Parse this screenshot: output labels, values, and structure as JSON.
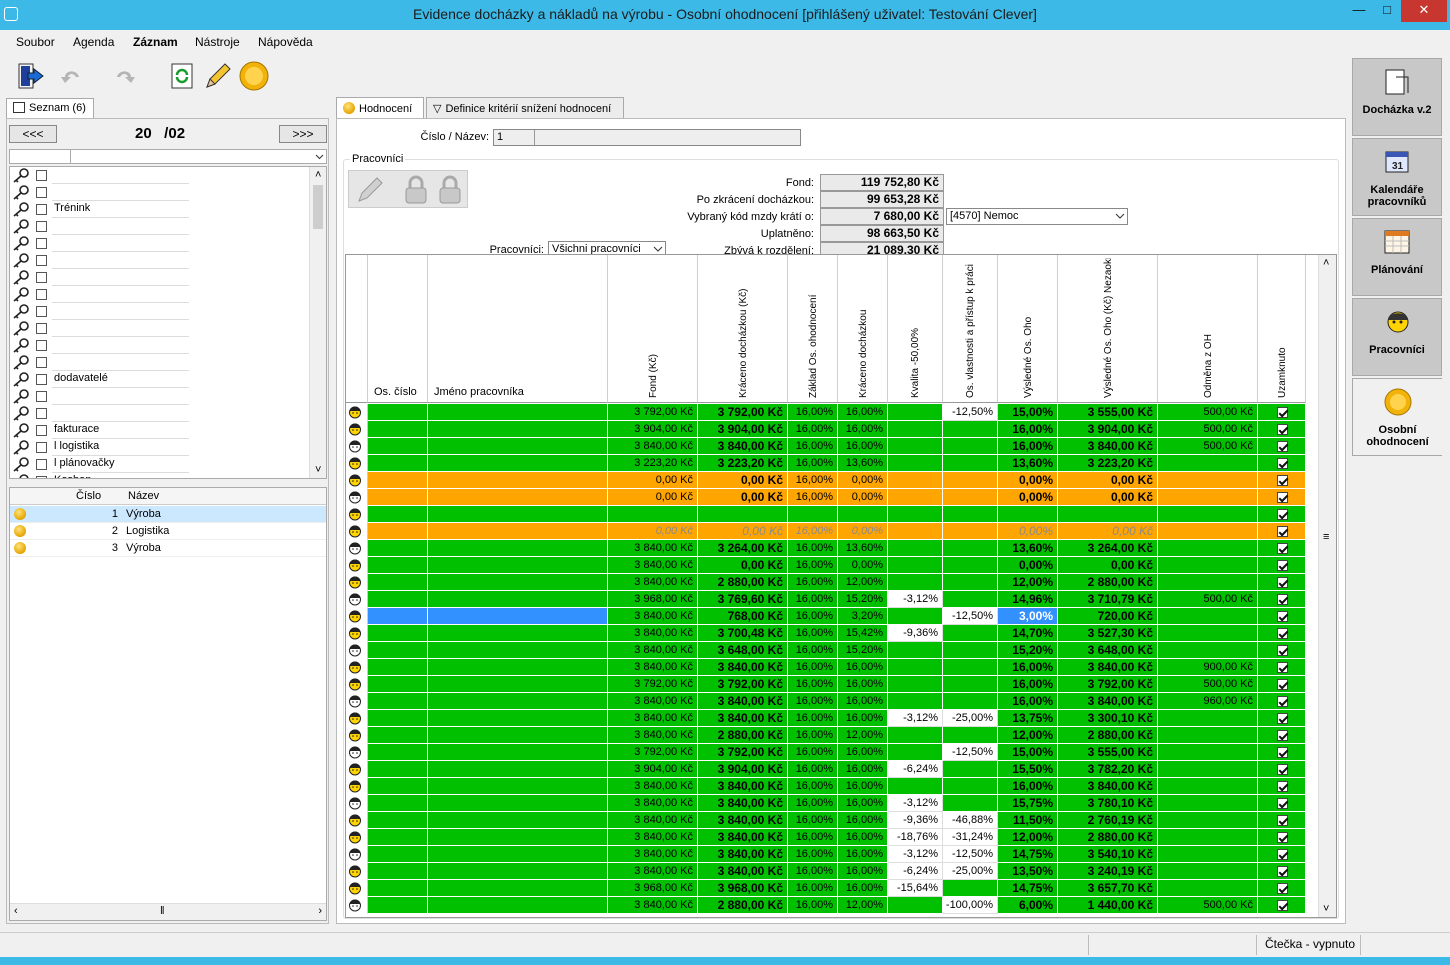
{
  "window": {
    "title": "Evidence docházky a nákladů na výrobu - Osobní ohodnocení [přihlášený uživatel: Testování Clever]"
  },
  "menu": [
    "Soubor",
    "Agenda",
    "Záznam",
    "Nástroje",
    "Nápověda"
  ],
  "toolbar": {
    "icons": [
      "exit-icon",
      "undo-icon",
      "redo-icon",
      "refresh-icon",
      "pencil-icon",
      "coin-icon"
    ]
  },
  "left": {
    "tab_label": "Seznam (6)",
    "prev_label": "<<<",
    "next_label": ">>>",
    "period": "20   /02",
    "list_items": [
      "",
      "",
      "Trénink",
      "",
      "",
      "",
      "",
      "",
      "",
      "",
      "",
      "",
      "dodavatelé",
      "",
      "",
      "fakturace",
      "l logistika",
      "l plánovačky",
      "Koshon"
    ],
    "table_headers": {
      "num": "Číslo",
      "name": "Název"
    },
    "table_rows": [
      {
        "num": "1",
        "name": "Výroba"
      },
      {
        "num": "2",
        "name": "Logistika"
      },
      {
        "num": "3",
        "name": "Výroba"
      }
    ]
  },
  "tabs": [
    "Hodnocení",
    "Definice kritérií snížení hodnocení"
  ],
  "form": {
    "id_label": "Číslo / Název:",
    "id_value": "1",
    "group_label": "Pracovníci",
    "workers_label": "Pracovníci:",
    "workers_value": "Všichni pracovníci",
    "fond_label": "Fond:",
    "fond_value": "119 752,80 Kč",
    "po_label": "Po zkrácení docházkou:",
    "po_value": "99 653,28 Kč",
    "kod_label": "Vybraný kód mzdy krátí o:",
    "kod_value": "7 680,00 Kč",
    "kod_select": "[4570] Nemoc",
    "upl_label": "Uplatněno:",
    "upl_value": "98 663,50 Kč",
    "zbyva_label": "Zbývá k rozdělení:",
    "zbyva_value": "21 089,30 Kč"
  },
  "grid": {
    "headers": [
      "Os. číslo",
      "Jméno pracovníka",
      "Fond (Kč)",
      "Kráceno docházkou (Kč)",
      "Základ Os. ohodnocení",
      "Kráceno docházkou",
      "Kvalita -50,00%",
      "Os. vlastnosti a přístup k práci",
      "Výsledné Os. Oho",
      "Výsledné Os. Oho (Kč) Nezaokrouhleno na koruny",
      "Odměna z OH",
      "Uzamknuto"
    ],
    "rows": [
      {
        "c": "g",
        "f": "3 792,00 Kč",
        "k": "3 792,00 Kč",
        "z": "16,00%",
        "kd": "16,00%",
        "q": "",
        "v": "-12,50%",
        "r": "15,00%",
        "rk": "3 555,00 Kč",
        "o": "500,00 Kč"
      },
      {
        "c": "g",
        "f": "3 904,00 Kč",
        "k": "3 904,00 Kč",
        "z": "16,00%",
        "kd": "16,00%",
        "q": "",
        "v": "",
        "r": "16,00%",
        "rk": "3 904,00 Kč",
        "o": "500,00 Kč"
      },
      {
        "c": "g",
        "f": "3 840,00 Kč",
        "k": "3 840,00 Kč",
        "z": "16,00%",
        "kd": "16,00%",
        "q": "",
        "v": "",
        "r": "16,00%",
        "rk": "3 840,00 Kč",
        "o": "500,00 Kč"
      },
      {
        "c": "g",
        "f": "3 223,20 Kč",
        "k": "3 223,20 Kč",
        "z": "16,00%",
        "kd": "13,60%",
        "q": "",
        "v": "",
        "r": "13,60%",
        "rk": "3 223,20 Kč",
        "o": ""
      },
      {
        "c": "o",
        "f": "0,00 Kč",
        "k": "0,00 Kč",
        "z": "16,00%",
        "kd": "0,00%",
        "q": "",
        "v": "",
        "r": "0,00%",
        "rk": "0,00 Kč",
        "o": ""
      },
      {
        "c": "o",
        "f": "0,00 Kč",
        "k": "0,00 Kč",
        "z": "16,00%",
        "kd": "0,00%",
        "q": "",
        "v": "",
        "r": "0,00%",
        "rk": "0,00 Kč",
        "o": ""
      },
      {
        "c": "gi",
        "f": "",
        "k": "",
        "z": "",
        "kd": "",
        "q": "",
        "v": "",
        "r": "",
        "rk": "",
        "o": ""
      },
      {
        "c": "oi",
        "f": "0,00 Kč",
        "k": "0,00 Kč",
        "z": "16,00%",
        "kd": "0,00%",
        "q": "",
        "v": "",
        "r": "0,00%",
        "rk": "0,00 Kč",
        "o": ""
      },
      {
        "c": "g",
        "f": "3 840,00 Kč",
        "k": "3 264,00 Kč",
        "z": "16,00%",
        "kd": "13,60%",
        "q": "",
        "v": "",
        "r": "13,60%",
        "rk": "3 264,00 Kč",
        "o": ""
      },
      {
        "c": "g",
        "f": "3 840,00 Kč",
        "k": "0,00 Kč",
        "z": "16,00%",
        "kd": "0,00%",
        "q": "",
        "v": "",
        "r": "0,00%",
        "rk": "0,00 Kč",
        "o": ""
      },
      {
        "c": "g",
        "f": "3 840,00 Kč",
        "k": "2 880,00 Kč",
        "z": "16,00%",
        "kd": "12,00%",
        "q": "",
        "v": "",
        "r": "12,00%",
        "rk": "2 880,00 Kč",
        "o": ""
      },
      {
        "c": "g",
        "f": "3 968,00 Kč",
        "k": "3 769,60 Kč",
        "z": "16,00%",
        "kd": "15,20%",
        "q": "-3,12%",
        "v": "",
        "r": "14,96%",
        "rk": "3 710,79 Kč",
        "o": "500,00 Kč"
      },
      {
        "c": "s",
        "f": "3 840,00 Kč",
        "k": "768,00 Kč",
        "z": "16,00%",
        "kd": "3,20%",
        "q": "",
        "v": "-12,50%",
        "r": "3,00%",
        "rk": "720,00 Kč",
        "o": ""
      },
      {
        "c": "g",
        "f": "3 840,00 Kč",
        "k": "3 700,48 Kč",
        "z": "16,00%",
        "kd": "15,42%",
        "q": "-9,36%",
        "v": "",
        "r": "14,70%",
        "rk": "3 527,30 Kč",
        "o": ""
      },
      {
        "c": "g",
        "f": "3 840,00 Kč",
        "k": "3 648,00 Kč",
        "z": "16,00%",
        "kd": "15,20%",
        "q": "",
        "v": "",
        "r": "15,20%",
        "rk": "3 648,00 Kč",
        "o": ""
      },
      {
        "c": "g",
        "f": "3 840,00 Kč",
        "k": "3 840,00 Kč",
        "z": "16,00%",
        "kd": "16,00%",
        "q": "",
        "v": "",
        "r": "16,00%",
        "rk": "3 840,00 Kč",
        "o": "900,00 Kč"
      },
      {
        "c": "g",
        "f": "3 792,00 Kč",
        "k": "3 792,00 Kč",
        "z": "16,00%",
        "kd": "16,00%",
        "q": "",
        "v": "",
        "r": "16,00%",
        "rk": "3 792,00 Kč",
        "o": "500,00 Kč"
      },
      {
        "c": "g",
        "f": "3 840,00 Kč",
        "k": "3 840,00 Kč",
        "z": "16,00%",
        "kd": "16,00%",
        "q": "",
        "v": "",
        "r": "16,00%",
        "rk": "3 840,00 Kč",
        "o": "960,00 Kč"
      },
      {
        "c": "g",
        "f": "3 840,00 Kč",
        "k": "3 840,00 Kč",
        "z": "16,00%",
        "kd": "16,00%",
        "q": "-3,12%",
        "v": "-25,00%",
        "r": "13,75%",
        "rk": "3 300,10 Kč",
        "o": ""
      },
      {
        "c": "g",
        "f": "3 840,00 Kč",
        "k": "2 880,00 Kč",
        "z": "16,00%",
        "kd": "12,00%",
        "q": "",
        "v": "",
        "r": "12,00%",
        "rk": "2 880,00 Kč",
        "o": ""
      },
      {
        "c": "g",
        "f": "3 792,00 Kč",
        "k": "3 792,00 Kč",
        "z": "16,00%",
        "kd": "16,00%",
        "q": "",
        "v": "-12,50%",
        "r": "15,00%",
        "rk": "3 555,00 Kč",
        "o": ""
      },
      {
        "c": "g",
        "f": "3 904,00 Kč",
        "k": "3 904,00 Kč",
        "z": "16,00%",
        "kd": "16,00%",
        "q": "-6,24%",
        "v": "",
        "r": "15,50%",
        "rk": "3 782,20 Kč",
        "o": ""
      },
      {
        "c": "g",
        "f": "3 840,00 Kč",
        "k": "3 840,00 Kč",
        "z": "16,00%",
        "kd": "16,00%",
        "q": "",
        "v": "",
        "r": "16,00%",
        "rk": "3 840,00 Kč",
        "o": ""
      },
      {
        "c": "g",
        "f": "3 840,00 Kč",
        "k": "3 840,00 Kč",
        "z": "16,00%",
        "kd": "16,00%",
        "q": "-3,12%",
        "v": "",
        "r": "15,75%",
        "rk": "3 780,10 Kč",
        "o": ""
      },
      {
        "c": "g",
        "f": "3 840,00 Kč",
        "k": "3 840,00 Kč",
        "z": "16,00%",
        "kd": "16,00%",
        "q": "-9,36%",
        "v": "-46,88%",
        "r": "11,50%",
        "rk": "2 760,19 Kč",
        "o": ""
      },
      {
        "c": "g",
        "f": "3 840,00 Kč",
        "k": "3 840,00 Kč",
        "z": "16,00%",
        "kd": "16,00%",
        "q": "-18,76%",
        "v": "-31,24%",
        "r": "12,00%",
        "rk": "2 880,00 Kč",
        "o": ""
      },
      {
        "c": "g",
        "f": "3 840,00 Kč",
        "k": "3 840,00 Kč",
        "z": "16,00%",
        "kd": "16,00%",
        "q": "-3,12%",
        "v": "-12,50%",
        "r": "14,75%",
        "rk": "3 540,10 Kč",
        "o": ""
      },
      {
        "c": "g",
        "f": "3 840,00 Kč",
        "k": "3 840,00 Kč",
        "z": "16,00%",
        "kd": "16,00%",
        "q": "-6,24%",
        "v": "-25,00%",
        "r": "13,50%",
        "rk": "3 240,19 Kč",
        "o": ""
      },
      {
        "c": "g",
        "f": "3 968,00 Kč",
        "k": "3 968,00 Kč",
        "z": "16,00%",
        "kd": "16,00%",
        "q": "-15,64%",
        "v": "",
        "r": "14,75%",
        "rk": "3 657,70 Kč",
        "o": ""
      },
      {
        "c": "g",
        "f": "3 840,00 Kč",
        "k": "2 880,00 Kč",
        "z": "16,00%",
        "kd": "12,00%",
        "q": "",
        "v": "-100,00%",
        "r": "6,00%",
        "rk": "1 440,00 Kč",
        "o": "500,00 Kč"
      }
    ]
  },
  "side": [
    {
      "label": "Docházka v.2",
      "icon": "attendance-icon"
    },
    {
      "label": "Kalendáře pracovníků",
      "icon": "calendar-icon"
    },
    {
      "label": "Plánování",
      "icon": "planning-icon"
    },
    {
      "label": "Pracovníci",
      "icon": "workers-icon"
    },
    {
      "label": "Osobní ohodnocení",
      "icon": "coin-icon"
    }
  ],
  "status": {
    "reader": "Čtečka - vypnuto"
  },
  "colors": {
    "green": "#00c000",
    "orange": "#ffa500",
    "selected": "#3391ff"
  }
}
